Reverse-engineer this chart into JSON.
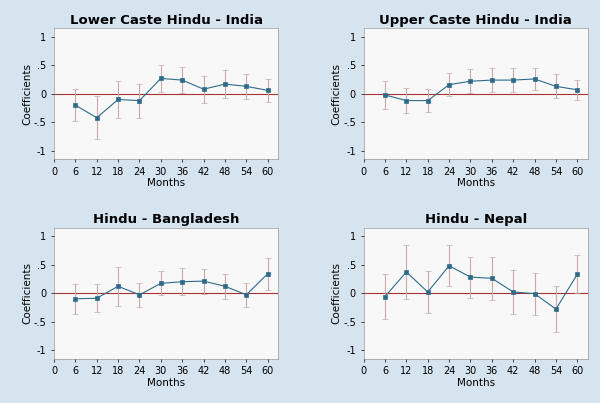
{
  "background_color": "#d6e4f0",
  "plots_bg": "#f8f8f8",
  "subplots": [
    {
      "title": "Lower Caste Hindu - India",
      "months": [
        6,
        12,
        18,
        24,
        30,
        36,
        42,
        48,
        54,
        60
      ],
      "coef": [
        -0.2,
        -0.42,
        -0.1,
        -0.12,
        0.27,
        0.24,
        0.08,
        0.17,
        0.13,
        0.06
      ],
      "ci_lo": [
        -0.48,
        -0.8,
        -0.42,
        -0.42,
        0.03,
        0.01,
        -0.16,
        -0.08,
        -0.09,
        -0.14
      ],
      "ci_hi": [
        0.08,
        -0.04,
        0.22,
        0.18,
        0.51,
        0.47,
        0.32,
        0.42,
        0.35,
        0.26
      ]
    },
    {
      "title": "Upper Caste Hindu - India",
      "months": [
        6,
        12,
        18,
        24,
        30,
        36,
        42,
        48,
        54,
        60
      ],
      "coef": [
        -0.02,
        -0.12,
        -0.12,
        0.16,
        0.22,
        0.24,
        0.24,
        0.26,
        0.13,
        0.07
      ],
      "ci_lo": [
        -0.26,
        -0.34,
        -0.32,
        -0.04,
        0.01,
        0.03,
        0.03,
        0.06,
        -0.08,
        -0.11
      ],
      "ci_hi": [
        0.22,
        0.1,
        0.08,
        0.36,
        0.43,
        0.45,
        0.45,
        0.46,
        0.34,
        0.25
      ]
    },
    {
      "title": "Hindu - Bangladesh",
      "months": [
        6,
        12,
        18,
        24,
        30,
        36,
        42,
        48,
        54,
        60
      ],
      "coef": [
        -0.1,
        -0.09,
        0.12,
        -0.03,
        0.17,
        0.2,
        0.21,
        0.12,
        -0.03,
        0.34
      ],
      "ci_lo": [
        -0.36,
        -0.34,
        -0.22,
        -0.24,
        -0.04,
        -0.04,
        -0.01,
        -0.1,
        -0.24,
        0.06
      ],
      "ci_hi": [
        0.16,
        0.16,
        0.46,
        0.18,
        0.38,
        0.44,
        0.43,
        0.34,
        0.18,
        0.62
      ]
    },
    {
      "title": "Hindu - Nepal",
      "months": [
        6,
        12,
        18,
        24,
        30,
        36,
        42,
        48,
        54,
        60
      ],
      "coef": [
        -0.06,
        0.37,
        0.02,
        0.48,
        0.28,
        0.26,
        0.02,
        -0.01,
        -0.28,
        0.33
      ],
      "ci_lo": [
        -0.45,
        -0.1,
        -0.35,
        0.12,
        -0.08,
        -0.12,
        -0.36,
        -0.38,
        -0.68,
        0.0
      ],
      "ci_hi": [
        0.33,
        0.84,
        0.39,
        0.84,
        0.64,
        0.64,
        0.4,
        0.36,
        0.12,
        0.66
      ]
    }
  ],
  "xlim": [
    0,
    63
  ],
  "ylim": [
    -1.15,
    1.15
  ],
  "xticks": [
    0,
    6,
    12,
    18,
    24,
    30,
    36,
    42,
    48,
    54,
    60
  ],
  "yticks": [
    -1,
    -0.5,
    0,
    0.5,
    1
  ],
  "ytick_labels": [
    "-1",
    "-.5",
    "0",
    ".5",
    "1"
  ],
  "xlabel": "Months",
  "ylabel": "Coefficients",
  "line_color": "#2e6b8a",
  "errorbar_color": "#c8a8a8",
  "ref_line_color": "#a83232",
  "marker": "s",
  "marker_size": 3.5,
  "title_fontsize": 9.5,
  "label_fontsize": 7.5,
  "tick_fontsize": 7
}
